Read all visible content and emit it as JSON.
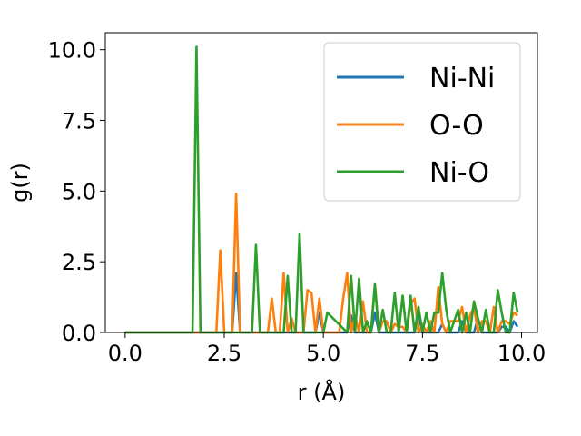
{
  "chart_data": {
    "type": "line",
    "title": "",
    "xlabel": "r (Å)",
    "ylabel": "g(r)",
    "xlim": [
      -0.5,
      10.4
    ],
    "ylim": [
      0.0,
      10.6
    ],
    "xticks": [
      0.0,
      2.5,
      5.0,
      7.5,
      10.0
    ],
    "xtick_labels": [
      "0.0",
      "2.5",
      "5.0",
      "7.5",
      "10.0"
    ],
    "yticks": [
      0.0,
      2.5,
      5.0,
      7.5,
      10.0
    ],
    "ytick_labels": [
      "0.0",
      "2.5",
      "5.0",
      "7.5",
      "10.0"
    ],
    "grid": false,
    "legend_position": "top-right",
    "series": [
      {
        "name": "Ni-Ni",
        "color": "#1f77b4",
        "x": [
          0.0,
          2.7,
          2.8,
          2.9,
          4.8,
          4.9,
          5.0,
          5.6,
          5.7,
          5.8,
          6.2,
          6.3,
          6.4,
          7.3,
          7.4,
          7.5,
          7.9,
          8.0,
          8.1,
          8.4,
          8.5,
          8.6,
          8.8,
          8.9,
          9.0,
          9.4,
          9.5,
          9.6,
          9.7,
          9.8,
          9.9
        ],
        "y": [
          0.0,
          0.0,
          2.1,
          0.0,
          0.0,
          0.7,
          0.0,
          0.0,
          0.6,
          0.0,
          0.0,
          0.7,
          0.0,
          0.0,
          0.6,
          0.0,
          0.0,
          0.3,
          0.0,
          0.0,
          0.4,
          0.0,
          0.0,
          0.5,
          0.0,
          0.0,
          0.2,
          0.2,
          0.0,
          0.4,
          0.2
        ]
      },
      {
        "name": "O-O",
        "color": "#ff7f0e",
        "x": [
          0.0,
          2.3,
          2.4,
          2.5,
          2.7,
          2.8,
          2.9,
          3.6,
          3.7,
          3.8,
          3.9,
          4.0,
          4.1,
          4.2,
          4.3,
          4.5,
          4.6,
          4.7,
          4.8,
          4.9,
          5.0,
          5.4,
          5.5,
          5.6,
          5.7,
          5.8,
          5.9,
          6.0,
          6.1,
          6.2,
          6.3,
          6.4,
          6.5,
          6.6,
          6.7,
          6.8,
          6.9,
          7.0,
          7.1,
          7.2,
          7.3,
          7.4,
          7.5,
          7.6,
          7.7,
          7.8,
          7.9,
          8.0,
          8.1,
          8.2,
          8.3,
          8.4,
          8.5,
          8.6,
          8.7,
          8.8,
          8.9,
          9.0,
          9.1,
          9.2,
          9.3,
          9.4,
          9.5,
          9.6,
          9.7,
          9.8,
          9.9
        ],
        "y": [
          0.0,
          0.0,
          2.9,
          0.0,
          0.0,
          4.9,
          0.0,
          0.0,
          1.2,
          0.0,
          0.0,
          2.1,
          0.0,
          0.5,
          0.0,
          0.0,
          1.5,
          1.4,
          0.0,
          1.2,
          0.0,
          0.0,
          1.2,
          2.1,
          0.0,
          0.6,
          0.0,
          1.1,
          0.0,
          0.0,
          1.7,
          0.0,
          0.4,
          0.4,
          0.0,
          0.3,
          0.2,
          0.2,
          0.0,
          1.0,
          1.2,
          0.0,
          0.3,
          0.0,
          0.4,
          0.0,
          1.6,
          0.3,
          0.0,
          0.4,
          0.4,
          0.4,
          0.9,
          0.0,
          0.6,
          0.9,
          0.0,
          0.4,
          0.4,
          0.0,
          0.9,
          0.0,
          0.4,
          0.4,
          0.3,
          0.7,
          0.6
        ]
      },
      {
        "name": "Ni-O",
        "color": "#2ca02c",
        "x": [
          0.0,
          1.7,
          1.8,
          1.9,
          3.2,
          3.3,
          3.4,
          4.0,
          4.1,
          4.2,
          4.3,
          4.4,
          4.5,
          5.0,
          5.1,
          5.6,
          5.7,
          5.8,
          5.9,
          6.0,
          6.1,
          6.2,
          6.3,
          6.4,
          6.5,
          6.6,
          6.7,
          6.8,
          6.9,
          7.0,
          7.1,
          7.2,
          7.3,
          7.4,
          7.5,
          7.6,
          7.7,
          7.8,
          7.9,
          8.0,
          8.1,
          8.2,
          8.3,
          8.4,
          8.5,
          8.6,
          8.7,
          8.8,
          8.9,
          9.0,
          9.1,
          9.2,
          9.3,
          9.4,
          9.5,
          9.6,
          9.7,
          9.8,
          9.9
        ],
        "y": [
          0.0,
          0.0,
          10.1,
          0.0,
          0.0,
          3.1,
          0.0,
          0.0,
          2.0,
          0.0,
          0.0,
          3.5,
          0.0,
          0.0,
          0.7,
          0.0,
          2.0,
          0.0,
          1.9,
          0.0,
          0.4,
          0.0,
          1.7,
          0.0,
          0.8,
          0.0,
          0.0,
          1.4,
          0.0,
          1.3,
          0.0,
          1.3,
          0.0,
          0.9,
          0.0,
          0.7,
          0.0,
          0.7,
          0.7,
          2.1,
          0.8,
          0.0,
          0.4,
          0.8,
          0.0,
          0.7,
          0.0,
          1.1,
          0.5,
          0.0,
          0.8,
          0.0,
          0.0,
          1.5,
          0.7,
          0.0,
          0.0,
          1.4,
          0.7
        ]
      }
    ]
  }
}
